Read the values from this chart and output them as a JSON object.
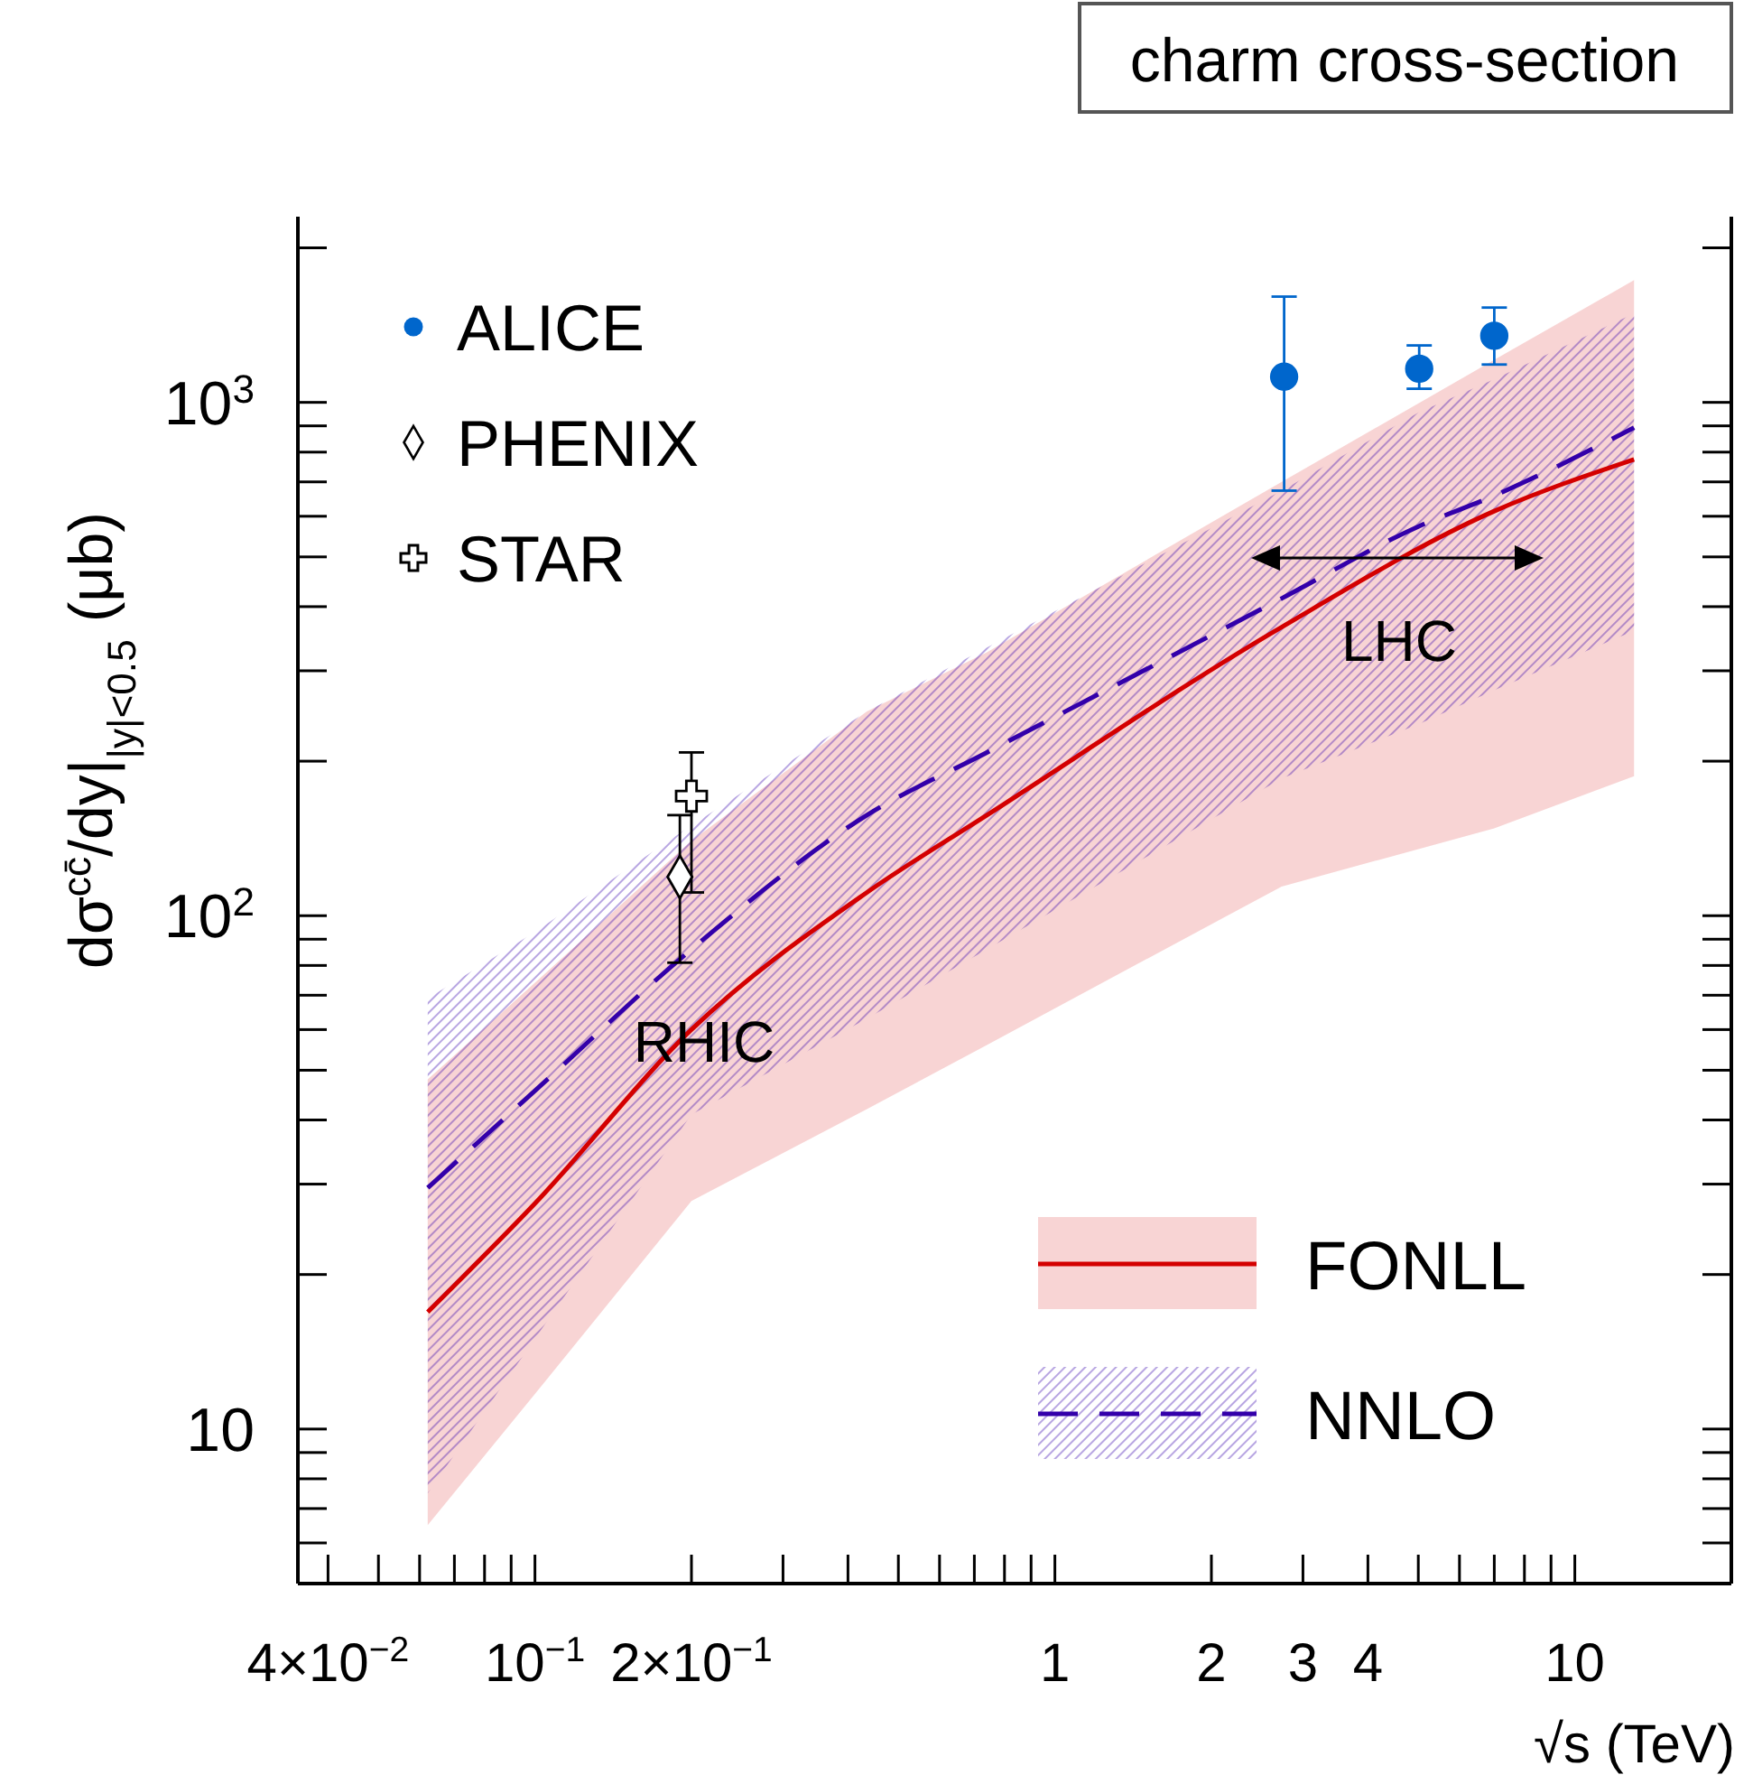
{
  "chart_data": {
    "type": "line",
    "title": "charm cross-section",
    "xlabel": "√s (TeV)",
    "ylabel": "dσ$^{cc̄}$/dy|$_{|y|<0.5}$ (μb)",
    "log": "xy",
    "xlim": [
      0.035,
      20
    ],
    "ylim": [
      5,
      2300
    ],
    "xticks": [
      {
        "value": 0.04,
        "label": "4×10$^{−2}$"
      },
      {
        "value": 0.05,
        "label": null
      },
      {
        "value": 0.06,
        "label": null
      },
      {
        "value": 0.07,
        "label": null
      },
      {
        "value": 0.08,
        "label": null
      },
      {
        "value": 0.09,
        "label": null
      },
      {
        "value": 0.1,
        "label": "10$^{−1}$"
      },
      {
        "value": 0.2,
        "label": "2×10$^{−1}$"
      },
      {
        "value": 0.3,
        "label": null
      },
      {
        "value": 0.4,
        "label": null
      },
      {
        "value": 0.5,
        "label": null
      },
      {
        "value": 0.6,
        "label": null
      },
      {
        "value": 0.7,
        "label": null
      },
      {
        "value": 0.8,
        "label": null
      },
      {
        "value": 0.9,
        "label": null
      },
      1,
      2,
      3,
      4,
      {
        "value": 5,
        "label": null
      },
      {
        "value": 6,
        "label": null
      },
      {
        "value": 7,
        "label": null
      },
      {
        "value": 8,
        "label": null
      },
      {
        "value": 9,
        "label": null
      },
      10
    ],
    "yticks": [
      {
        "value": 5,
        "label": null
      },
      {
        "value": 6,
        "label": null
      },
      {
        "value": 7,
        "label": null
      },
      {
        "value": 8,
        "label": null
      },
      {
        "value": 9,
        "label": null
      },
      10,
      {
        "value": 20,
        "label": null
      },
      {
        "value": 30,
        "label": null
      },
      {
        "value": 40,
        "label": null
      },
      {
        "value": 50,
        "label": null
      },
      {
        "value": 60,
        "label": null
      },
      {
        "value": 70,
        "label": null
      },
      {
        "value": 80,
        "label": null
      },
      {
        "value": 90,
        "label": null
      },
      {
        "value": 100,
        "label": "10$^{2}$"
      },
      {
        "value": 200,
        "label": null
      },
      {
        "value": 300,
        "label": null
      },
      {
        "value": 400,
        "label": null
      },
      {
        "value": 500,
        "label": null
      },
      {
        "value": 600,
        "label": null
      },
      {
        "value": 700,
        "label": null
      },
      {
        "value": 800,
        "label": null
      },
      {
        "value": 900,
        "label": null
      },
      {
        "value": 1000,
        "label": "10$^{3}$"
      },
      {
        "value": 2000,
        "label": null
      }
    ],
    "legend": "top left",
    "annotations": [
      "RHIC",
      "LHC"
    ],
    "series": [
      {
        "name": "FONLL",
        "color": "#d40000",
        "line_style": "solid",
        "x": [
          0.0622,
          0.1,
          0.2,
          0.435,
          0.74,
          2.73,
          7.0,
          13
        ],
        "values": [
          16.9,
          27.5,
          60,
          111,
          157,
          365,
          614,
          774
        ],
        "lower": [
          6.5,
          11.7,
          27.8,
          42,
          56,
          114,
          148,
          187
        ],
        "upper": [
          48,
          74,
          140,
          250,
          326,
          700,
          1210,
          1730
        ]
      },
      {
        "name": "NNLO",
        "color": "#3300aa",
        "line_style": "dashed",
        "x": [
          0.0622,
          0.1,
          0.2,
          0.435,
          0.74,
          2.73,
          5.0,
          7.0,
          13
        ],
        "values": [
          29.5,
          45.6,
          86,
          157,
          208,
          415,
          573,
          658,
          893
        ],
        "lower": [
          7.5,
          15,
          41,
          63,
          86,
          185,
          236,
          275,
          359
        ],
        "upper": [
          69,
          93,
          150,
          250,
          333,
          673,
          955,
          1110,
          1490
        ]
      },
      {
        "name": "ALICE",
        "type": "scatter",
        "color": "#0066cc",
        "marker": "circle",
        "x": [
          2.76,
          5.02,
          7.0
        ],
        "values": [
          1122,
          1163,
          1348
        ],
        "errors": [
          [
            673,
            1607
          ],
          [
            1063,
            1291
          ],
          [
            1185,
            1530
          ]
        ]
      },
      {
        "name": "PHENIX",
        "type": "scatter",
        "color": "#000000",
        "marker": "diamond",
        "x": [
          0.19
        ],
        "values": [
          119
        ],
        "errors": [
          [
            81,
            157
          ]
        ]
      },
      {
        "name": "STAR",
        "type": "scatter",
        "color": "#000000",
        "marker": "cross",
        "x": [
          0.2
        ],
        "values": [
          171
        ],
        "errors": [
          [
            111,
            208
          ]
        ]
      }
    ]
  }
}
